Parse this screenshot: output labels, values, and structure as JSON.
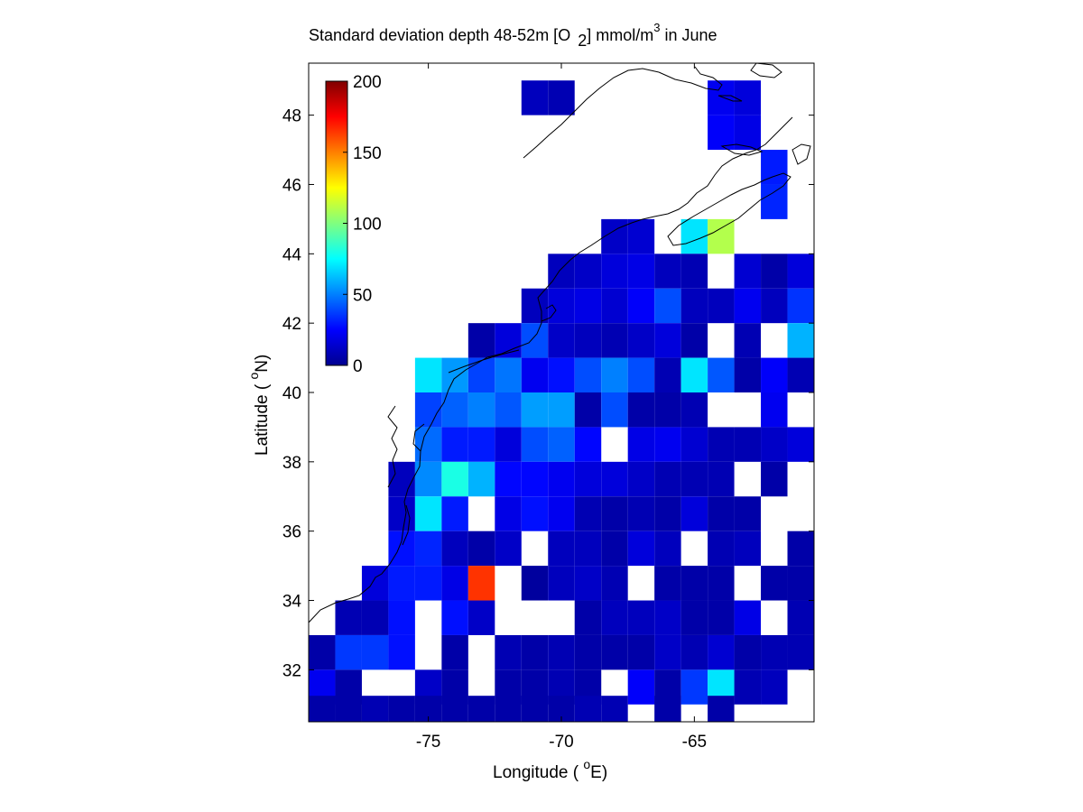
{
  "title": {
    "main": "Standard deviation depth 48-52m [O",
    "sub": "2",
    "unit": "] mmol/m",
    "sup": "3",
    "tail": " in June"
  },
  "xlabel": {
    "text": "Longitude ( ",
    "sup": "o",
    "tail": "E)"
  },
  "ylabel": {
    "text": "Latitude ( ",
    "sup": "o",
    "tail": "N)"
  },
  "colorbar": {
    "min": 0,
    "max": 200,
    "ticks": [
      "200",
      "150",
      "100",
      "50",
      "0"
    ],
    "colormap": "jet"
  },
  "chart_data": {
    "type": "heatmap",
    "title": "Standard deviation depth 48-52m [O2] mmol/m3 in June",
    "xlabel": "Longitude ( oE)",
    "ylabel": "Latitude ( oN)",
    "xlim": [
      -79.5,
      -60.5
    ],
    "ylim": [
      30.5,
      49.5
    ],
    "xticks": [
      -75,
      -70,
      -65
    ],
    "yticks": [
      32,
      34,
      36,
      38,
      40,
      42,
      44,
      46,
      48
    ],
    "clim": [
      0,
      200
    ],
    "cell_size_deg": 1,
    "grid": false,
    "cells": [
      [
        -71,
        48.5,
        12
      ],
      [
        -70,
        48.5,
        10
      ],
      [
        -64,
        48.5,
        22
      ],
      [
        -63,
        48.5,
        18
      ],
      [
        -64,
        47.5,
        24
      ],
      [
        -63,
        47.5,
        20
      ],
      [
        -62,
        46.5,
        30
      ],
      [
        -62,
        45.5,
        32
      ],
      [
        -68,
        44.5,
        14
      ],
      [
        -67,
        44.5,
        16
      ],
      [
        -65,
        44.5,
        70
      ],
      [
        -64,
        44.5,
        110
      ],
      [
        -70,
        43.5,
        12
      ],
      [
        -69,
        43.5,
        14
      ],
      [
        -68,
        43.5,
        18
      ],
      [
        -67,
        43.5,
        20
      ],
      [
        -66,
        43.5,
        12
      ],
      [
        -65,
        43.5,
        10
      ],
      [
        -63,
        43.5,
        16
      ],
      [
        -62,
        43.5,
        8
      ],
      [
        -61,
        43.5,
        18
      ],
      [
        -71,
        42.5,
        12
      ],
      [
        -70,
        42.5,
        18
      ],
      [
        -69,
        42.5,
        20
      ],
      [
        -68,
        42.5,
        16
      ],
      [
        -67,
        42.5,
        24
      ],
      [
        -66,
        42.5,
        40
      ],
      [
        -65,
        42.5,
        12
      ],
      [
        -64,
        42.5,
        12
      ],
      [
        -63,
        42.5,
        22
      ],
      [
        -62,
        42.5,
        12
      ],
      [
        -61,
        42.5,
        35
      ],
      [
        -73,
        41.5,
        8
      ],
      [
        -72,
        41.5,
        18
      ],
      [
        -71,
        41.5,
        40
      ],
      [
        -70,
        41.5,
        14
      ],
      [
        -69,
        41.5,
        12
      ],
      [
        -68,
        41.5,
        10
      ],
      [
        -67,
        41.5,
        14
      ],
      [
        -66,
        41.5,
        18
      ],
      [
        -65,
        41.5,
        8
      ],
      [
        -63,
        41.5,
        10
      ],
      [
        -61,
        41.5,
        60
      ],
      [
        -75,
        40.5,
        70
      ],
      [
        -74,
        40.5,
        55
      ],
      [
        -73,
        40.5,
        38
      ],
      [
        -72,
        40.5,
        48
      ],
      [
        -71,
        40.5,
        22
      ],
      [
        -70,
        40.5,
        28
      ],
      [
        -69,
        40.5,
        40
      ],
      [
        -68,
        40.5,
        50
      ],
      [
        -67,
        40.5,
        40
      ],
      [
        -66,
        40.5,
        10
      ],
      [
        -65,
        40.5,
        70
      ],
      [
        -64,
        40.5,
        42
      ],
      [
        -63,
        40.5,
        8
      ],
      [
        -62,
        40.5,
        24
      ],
      [
        -61,
        40.5,
        10
      ],
      [
        -75,
        39.5,
        38
      ],
      [
        -74,
        39.5,
        44
      ],
      [
        -73,
        39.5,
        50
      ],
      [
        -72,
        39.5,
        42
      ],
      [
        -71,
        39.5,
        56
      ],
      [
        -70,
        39.5,
        56
      ],
      [
        -69,
        39.5,
        8
      ],
      [
        -68,
        39.5,
        40
      ],
      [
        -67,
        39.5,
        8
      ],
      [
        -66,
        39.5,
        8
      ],
      [
        -65,
        39.5,
        10
      ],
      [
        -62,
        39.5,
        22
      ],
      [
        -75,
        38.5,
        46
      ],
      [
        -74,
        38.5,
        30
      ],
      [
        -73,
        38.5,
        30
      ],
      [
        -72,
        38.5,
        18
      ],
      [
        -71,
        38.5,
        40
      ],
      [
        -70,
        38.5,
        44
      ],
      [
        -69,
        38.5,
        26
      ],
      [
        -67,
        38.5,
        20
      ],
      [
        -66,
        38.5,
        22
      ],
      [
        -65,
        38.5,
        16
      ],
      [
        -64,
        38.5,
        10
      ],
      [
        -63,
        38.5,
        10
      ],
      [
        -62,
        38.5,
        14
      ],
      [
        -61,
        38.5,
        18
      ],
      [
        -76,
        37.5,
        12
      ],
      [
        -75,
        37.5,
        52
      ],
      [
        -74,
        37.5,
        80
      ],
      [
        -73,
        37.5,
        60
      ],
      [
        -72,
        37.5,
        26
      ],
      [
        -71,
        37.5,
        26
      ],
      [
        -70,
        37.5,
        22
      ],
      [
        -69,
        37.5,
        18
      ],
      [
        -68,
        37.5,
        18
      ],
      [
        -67,
        37.5,
        14
      ],
      [
        -66,
        37.5,
        10
      ],
      [
        -65,
        37.5,
        10
      ],
      [
        -64,
        37.5,
        10
      ],
      [
        -62,
        37.5,
        8
      ],
      [
        -76,
        36.5,
        14
      ],
      [
        -75,
        36.5,
        70
      ],
      [
        -74,
        36.5,
        30
      ],
      [
        -72,
        36.5,
        20
      ],
      [
        -71,
        36.5,
        28
      ],
      [
        -70,
        36.5,
        22
      ],
      [
        -69,
        36.5,
        10
      ],
      [
        -68,
        36.5,
        8
      ],
      [
        -67,
        36.5,
        10
      ],
      [
        -66,
        36.5,
        8
      ],
      [
        -65,
        36.5,
        18
      ],
      [
        -64,
        36.5,
        8
      ],
      [
        -63,
        36.5,
        8
      ],
      [
        -76,
        35.5,
        28
      ],
      [
        -75,
        35.5,
        32
      ],
      [
        -74,
        35.5,
        12
      ],
      [
        -73,
        35.5,
        8
      ],
      [
        -72,
        35.5,
        14
      ],
      [
        -70,
        35.5,
        12
      ],
      [
        -69,
        35.5,
        12
      ],
      [
        -68,
        35.5,
        8
      ],
      [
        -67,
        35.5,
        18
      ],
      [
        -66,
        35.5,
        12
      ],
      [
        -64,
        35.5,
        10
      ],
      [
        -63,
        35.5,
        12
      ],
      [
        -61,
        35.5,
        8
      ],
      [
        -77,
        34.5,
        18
      ],
      [
        -76,
        34.5,
        30
      ],
      [
        -75,
        34.5,
        30
      ],
      [
        -74,
        34.5,
        20
      ],
      [
        -73,
        34.5,
        165
      ],
      [
        -71,
        34.5,
        6
      ],
      [
        -70,
        34.5,
        12
      ],
      [
        -69,
        34.5,
        14
      ],
      [
        -68,
        34.5,
        10
      ],
      [
        -66,
        34.5,
        8
      ],
      [
        -65,
        34.5,
        8
      ],
      [
        -64,
        34.5,
        8
      ],
      [
        -62,
        34.5,
        8
      ],
      [
        -61,
        34.5,
        8
      ],
      [
        -78,
        33.5,
        10
      ],
      [
        -77,
        33.5,
        10
      ],
      [
        -76,
        33.5,
        28
      ],
      [
        -74,
        33.5,
        28
      ],
      [
        -73,
        33.5,
        14
      ],
      [
        -69,
        33.5,
        8
      ],
      [
        -68,
        33.5,
        12
      ],
      [
        -67,
        33.5,
        12
      ],
      [
        -66,
        33.5,
        14
      ],
      [
        -65,
        33.5,
        8
      ],
      [
        -64,
        33.5,
        8
      ],
      [
        -63,
        33.5,
        20
      ],
      [
        -61,
        33.5,
        10
      ],
      [
        -79,
        32.5,
        8
      ],
      [
        -78,
        32.5,
        36
      ],
      [
        -77,
        32.5,
        36
      ],
      [
        -76,
        32.5,
        28
      ],
      [
        -74,
        32.5,
        8
      ],
      [
        -72,
        32.5,
        10
      ],
      [
        -71,
        32.5,
        8
      ],
      [
        -70,
        32.5,
        10
      ],
      [
        -69,
        32.5,
        8
      ],
      [
        -68,
        32.5,
        8
      ],
      [
        -67,
        32.5,
        8
      ],
      [
        -66,
        32.5,
        14
      ],
      [
        -65,
        32.5,
        10
      ],
      [
        -64,
        32.5,
        16
      ],
      [
        -63,
        32.5,
        8
      ],
      [
        -62,
        32.5,
        10
      ],
      [
        -61,
        32.5,
        10
      ],
      [
        -79,
        31.5,
        22
      ],
      [
        -78,
        31.5,
        8
      ],
      [
        -75,
        31.5,
        14
      ],
      [
        -74,
        31.5,
        8
      ],
      [
        -72,
        31.5,
        8
      ],
      [
        -71,
        31.5,
        8
      ],
      [
        -70,
        31.5,
        10
      ],
      [
        -69,
        31.5,
        8
      ],
      [
        -67,
        31.5,
        24
      ],
      [
        -66,
        31.5,
        8
      ],
      [
        -65,
        31.5,
        36
      ],
      [
        -64,
        31.5,
        70
      ],
      [
        -63,
        31.5,
        10
      ],
      [
        -62,
        31.5,
        12
      ],
      [
        -79,
        30.75,
        8
      ],
      [
        -78,
        30.75,
        8
      ],
      [
        -77,
        30.75,
        10
      ],
      [
        -76,
        30.75,
        8
      ],
      [
        -75,
        30.75,
        8
      ],
      [
        -74,
        30.75,
        8
      ],
      [
        -73,
        30.75,
        8
      ],
      [
        -72,
        30.75,
        8
      ],
      [
        -71,
        30.75,
        8
      ],
      [
        -70,
        30.75,
        8
      ],
      [
        -69,
        30.75,
        10
      ],
      [
        -68,
        30.75,
        10
      ],
      [
        -66,
        30.75,
        8
      ],
      [
        -64,
        30.75,
        8
      ]
    ]
  }
}
